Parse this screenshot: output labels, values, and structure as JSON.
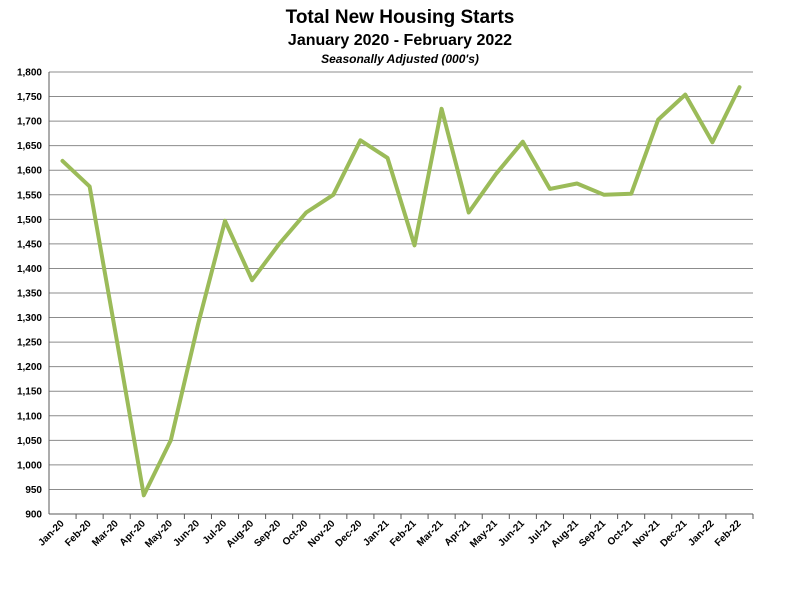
{
  "chart_data": {
    "type": "line",
    "title": "Total New Housing Starts",
    "subtitle": "January 2020 - February 2022",
    "subtitle2": "Seasonally Adjusted (000's)",
    "xlabel": "",
    "ylabel": "",
    "ylim": [
      900,
      1800
    ],
    "ytick_step": 50,
    "grid": true,
    "line_color": "#9bbb59",
    "categories": [
      "Jan-20",
      "Feb-20",
      "Mar-20",
      "Apr-20",
      "May-20",
      "Jun-20",
      "Jul-20",
      "Aug-20",
      "Sep-20",
      "Oct-20",
      "Nov-20",
      "Dec-20",
      "Jan-21",
      "Feb-21",
      "Mar-21",
      "Apr-21",
      "May-21",
      "Jun-21",
      "Jul-21",
      "Aug-21",
      "Sep-21",
      "Oct-21",
      "Nov-21",
      "Dec-21",
      "Jan-22",
      "Feb-22"
    ],
    "series": [
      {
        "values": [
          1619,
          1567,
          1255,
          938,
          1050,
          1285,
          1497,
          1376,
          1450,
          1514,
          1550,
          1661,
          1625,
          1447,
          1725,
          1514,
          1592,
          1658,
          1562,
          1573,
          1550,
          1552,
          1703,
          1754,
          1657,
          1769
        ]
      }
    ]
  }
}
